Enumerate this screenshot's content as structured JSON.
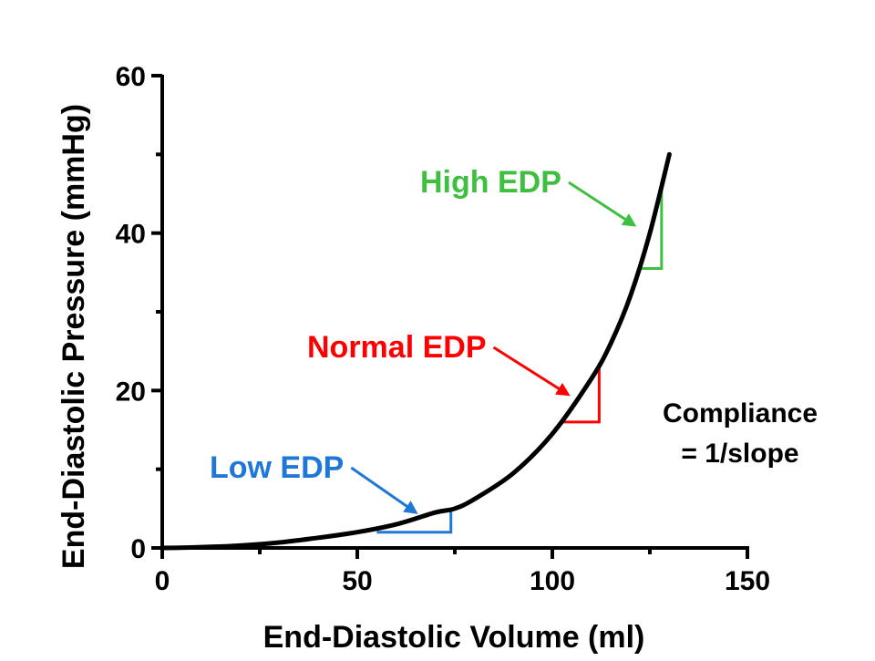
{
  "chart_data": {
    "type": "line",
    "title": "",
    "xlabel": "End-Diastolic Volume (ml)",
    "ylabel": "End-Diastolic Pressure (mmHg)",
    "xlim": [
      0,
      150
    ],
    "ylim": [
      0,
      60
    ],
    "xticks": [
      0,
      50,
      100,
      150
    ],
    "xtick_labels": [
      "0",
      "50",
      "100",
      "150"
    ],
    "yticks": [
      0,
      20,
      40,
      60
    ],
    "ytick_labels": [
      "0",
      "20",
      "40",
      "60"
    ],
    "grid": false,
    "legend": "none",
    "series": [
      {
        "color": "#000000",
        "x": [
          0,
          10,
          20,
          30,
          40,
          50,
          60,
          70,
          75,
          80,
          90,
          100,
          110,
          115,
          120,
          125,
          130
        ],
        "y": [
          0,
          0.1,
          0.3,
          0.7,
          1.3,
          2.0,
          3.0,
          4.5,
          5.0,
          6.2,
          9.5,
          14.5,
          21.5,
          26.0,
          32.0,
          40.0,
          50.0
        ]
      }
    ],
    "annotations": [
      {
        "label": "Low EDP",
        "color": "#1f77d8",
        "slope_triangle": {
          "x1": 55,
          "x2": 74,
          "y1": 2,
          "y2": 5
        },
        "arrow_target": {
          "x": 65,
          "y": 4.5
        }
      },
      {
        "label": "Normal EDP",
        "color": "#ff0000",
        "slope_triangle": {
          "x1": 102,
          "x2": 112,
          "y1": 16,
          "y2": 23.5
        },
        "arrow_target": {
          "x": 104,
          "y": 19.5
        }
      },
      {
        "label": "High EDP",
        "color": "#3fbf3f",
        "slope_triangle": {
          "x1": 122,
          "x2": 128,
          "y1": 35.5,
          "y2": 46.5
        },
        "arrow_target": {
          "x": 121,
          "y": 41
        }
      }
    ],
    "notes": [
      "Compliance",
      "= 1/slope"
    ]
  }
}
